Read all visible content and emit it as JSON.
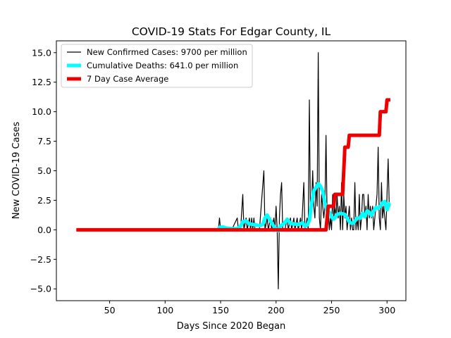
{
  "chart_data": {
    "type": "line",
    "title": "COVID-19 Stats For Edgar County, IL",
    "xlabel": "Days Since 2020 Began",
    "ylabel": "New COVID-19 Cases",
    "xlim": [
      2,
      317
    ],
    "ylim": [
      -6.0,
      16.0
    ],
    "xticks": [
      50,
      100,
      150,
      200,
      250,
      300
    ],
    "yticks": [
      -5.0,
      -2.5,
      0.0,
      2.5,
      5.0,
      7.5,
      10.0,
      12.5,
      15.0
    ],
    "xtick_labels": [
      "50",
      "100",
      "150",
      "200",
      "250",
      "300"
    ],
    "ytick_labels": [
      "−5.0",
      "−2.5",
      "0.0",
      "2.5",
      "5.0",
      "7.5",
      "10.0",
      "12.5",
      "15.0"
    ],
    "grid": false,
    "legend_position": "top-left",
    "series": [
      {
        "name": "New Confirmed Cases: 9700 per million",
        "color": "#000000",
        "points": [
          [
            20,
            0
          ],
          [
            148,
            0
          ],
          [
            149,
            1
          ],
          [
            150,
            0
          ],
          [
            155,
            0
          ],
          [
            160,
            0
          ],
          [
            165,
            1
          ],
          [
            166,
            0
          ],
          [
            168,
            0
          ],
          [
            170,
            3
          ],
          [
            171,
            0
          ],
          [
            173,
            1
          ],
          [
            174,
            0
          ],
          [
            176,
            1
          ],
          [
            177,
            0
          ],
          [
            178,
            1
          ],
          [
            179,
            0
          ],
          [
            180,
            1
          ],
          [
            181,
            0
          ],
          [
            185,
            0
          ],
          [
            189,
            5
          ],
          [
            190,
            0
          ],
          [
            192,
            1
          ],
          [
            193,
            0
          ],
          [
            195,
            1
          ],
          [
            196,
            0
          ],
          [
            198,
            1
          ],
          [
            199,
            0
          ],
          [
            200,
            2
          ],
          [
            201,
            0
          ],
          [
            202,
            -5
          ],
          [
            203,
            1
          ],
          [
            204,
            3
          ],
          [
            205,
            4
          ],
          [
            206,
            0
          ],
          [
            208,
            0
          ],
          [
            210,
            1
          ],
          [
            211,
            0
          ],
          [
            213,
            1
          ],
          [
            214,
            0
          ],
          [
            216,
            1
          ],
          [
            217,
            0
          ],
          [
            219,
            1
          ],
          [
            220,
            0
          ],
          [
            222,
            1
          ],
          [
            223,
            0
          ],
          [
            225,
            4
          ],
          [
            226,
            0
          ],
          [
            228,
            1
          ],
          [
            229,
            0
          ],
          [
            230,
            11
          ],
          [
            231,
            1
          ],
          [
            232,
            2
          ],
          [
            233,
            5
          ],
          [
            234,
            2
          ],
          [
            235,
            1
          ],
          [
            236,
            4
          ],
          [
            237,
            2
          ],
          [
            238,
            15
          ],
          [
            239,
            1
          ],
          [
            240,
            0
          ],
          [
            241,
            3
          ],
          [
            242,
            2
          ],
          [
            243,
            1
          ],
          [
            244,
            2
          ],
          [
            245,
            8
          ],
          [
            246,
            1
          ],
          [
            247,
            2
          ],
          [
            248,
            0
          ],
          [
            249,
            1
          ],
          [
            250,
            0
          ],
          [
            251,
            3
          ],
          [
            252,
            1
          ],
          [
            253,
            2
          ],
          [
            254,
            1
          ],
          [
            255,
            3
          ],
          [
            256,
            1
          ],
          [
            257,
            2
          ],
          [
            258,
            0
          ],
          [
            259,
            4
          ],
          [
            260,
            0
          ],
          [
            261,
            3
          ],
          [
            262,
            1
          ],
          [
            263,
            2
          ],
          [
            264,
            0
          ],
          [
            265,
            1
          ],
          [
            266,
            2
          ],
          [
            267,
            0
          ],
          [
            268,
            1
          ],
          [
            269,
            0
          ],
          [
            270,
            0
          ],
          [
            271,
            4
          ],
          [
            272,
            0
          ],
          [
            273,
            1
          ],
          [
            274,
            0
          ],
          [
            275,
            3
          ],
          [
            276,
            0
          ],
          [
            277,
            1
          ],
          [
            278,
            3
          ],
          [
            279,
            3
          ],
          [
            280,
            1
          ],
          [
            281,
            2
          ],
          [
            282,
            0
          ],
          [
            283,
            3
          ],
          [
            284,
            1
          ],
          [
            285,
            2
          ],
          [
            286,
            1
          ],
          [
            287,
            2
          ],
          [
            288,
            0
          ],
          [
            289,
            1
          ],
          [
            290,
            2
          ],
          [
            291,
            3
          ],
          [
            292,
            7
          ],
          [
            293,
            1
          ],
          [
            294,
            0
          ],
          [
            295,
            4
          ],
          [
            296,
            1
          ],
          [
            297,
            2
          ],
          [
            298,
            1
          ],
          [
            299,
            0
          ],
          [
            300,
            3
          ],
          [
            301,
            6
          ],
          [
            302,
            2
          ],
          [
            303,
            2
          ]
        ]
      },
      {
        "name": "Cumulative Deaths: 641.0 per million",
        "color": "#00ffff",
        "points": [
          [
            148,
            0.05
          ],
          [
            149,
            0.2
          ],
          [
            152,
            0.25
          ],
          [
            155,
            0.15
          ],
          [
            160,
            0.1
          ],
          [
            165,
            0.1
          ],
          [
            168,
            0.3
          ],
          [
            170,
            0.7
          ],
          [
            173,
            0.75
          ],
          [
            176,
            0.5
          ],
          [
            180,
            0.45
          ],
          [
            185,
            0.35
          ],
          [
            188,
            0.45
          ],
          [
            190,
            1.0
          ],
          [
            192,
            1.25
          ],
          [
            194,
            0.9
          ],
          [
            196,
            0.6
          ],
          [
            198,
            0.3
          ],
          [
            200,
            0.1
          ],
          [
            202,
            -0.1
          ],
          [
            204,
            0.35
          ],
          [
            207,
            0.5
          ],
          [
            210,
            0.9
          ],
          [
            213,
            0.55
          ],
          [
            216,
            0.5
          ],
          [
            220,
            0.45
          ],
          [
            224,
            0.6
          ],
          [
            226,
            0.3
          ],
          [
            228,
            0.4
          ],
          [
            230,
            0.8
          ],
          [
            232,
            2.2
          ],
          [
            234,
            3.3
          ],
          [
            236,
            3.6
          ],
          [
            238,
            3.9
          ],
          [
            240,
            3.7
          ],
          [
            242,
            3.3
          ],
          [
            244,
            2.3
          ],
          [
            246,
            1.6
          ],
          [
            248,
            1.5
          ],
          [
            250,
            1.1
          ],
          [
            252,
            0.9
          ],
          [
            255,
            1.3
          ],
          [
            258,
            1.4
          ],
          [
            260,
            1.35
          ],
          [
            262,
            1.3
          ],
          [
            264,
            1.0
          ],
          [
            266,
            0.7
          ],
          [
            268,
            0.55
          ],
          [
            270,
            0.6
          ],
          [
            273,
            1.0
          ],
          [
            276,
            1.0
          ],
          [
            278,
            1.4
          ],
          [
            280,
            1.1
          ],
          [
            282,
            1.6
          ],
          [
            284,
            1.5
          ],
          [
            286,
            1.2
          ],
          [
            288,
            1.6
          ],
          [
            290,
            1.9
          ],
          [
            292,
            1.8
          ],
          [
            294,
            2.0
          ],
          [
            296,
            2.3
          ],
          [
            298,
            2.4
          ],
          [
            300,
            1.7
          ],
          [
            302,
            2.2
          ],
          [
            303,
            2.25
          ]
        ]
      },
      {
        "name": "7 Day Case Average",
        "color": "#ee0000",
        "points": [
          [
            20,
            0
          ],
          [
            245,
            0
          ],
          [
            246,
            1
          ],
          [
            247,
            2
          ],
          [
            252,
            2
          ],
          [
            253,
            3
          ],
          [
            260,
            3
          ],
          [
            261,
            5
          ],
          [
            262,
            7
          ],
          [
            265,
            7
          ],
          [
            266,
            8
          ],
          [
            293,
            8
          ],
          [
            294,
            10
          ],
          [
            299,
            10
          ],
          [
            300,
            11
          ],
          [
            303,
            11
          ]
        ]
      }
    ]
  }
}
